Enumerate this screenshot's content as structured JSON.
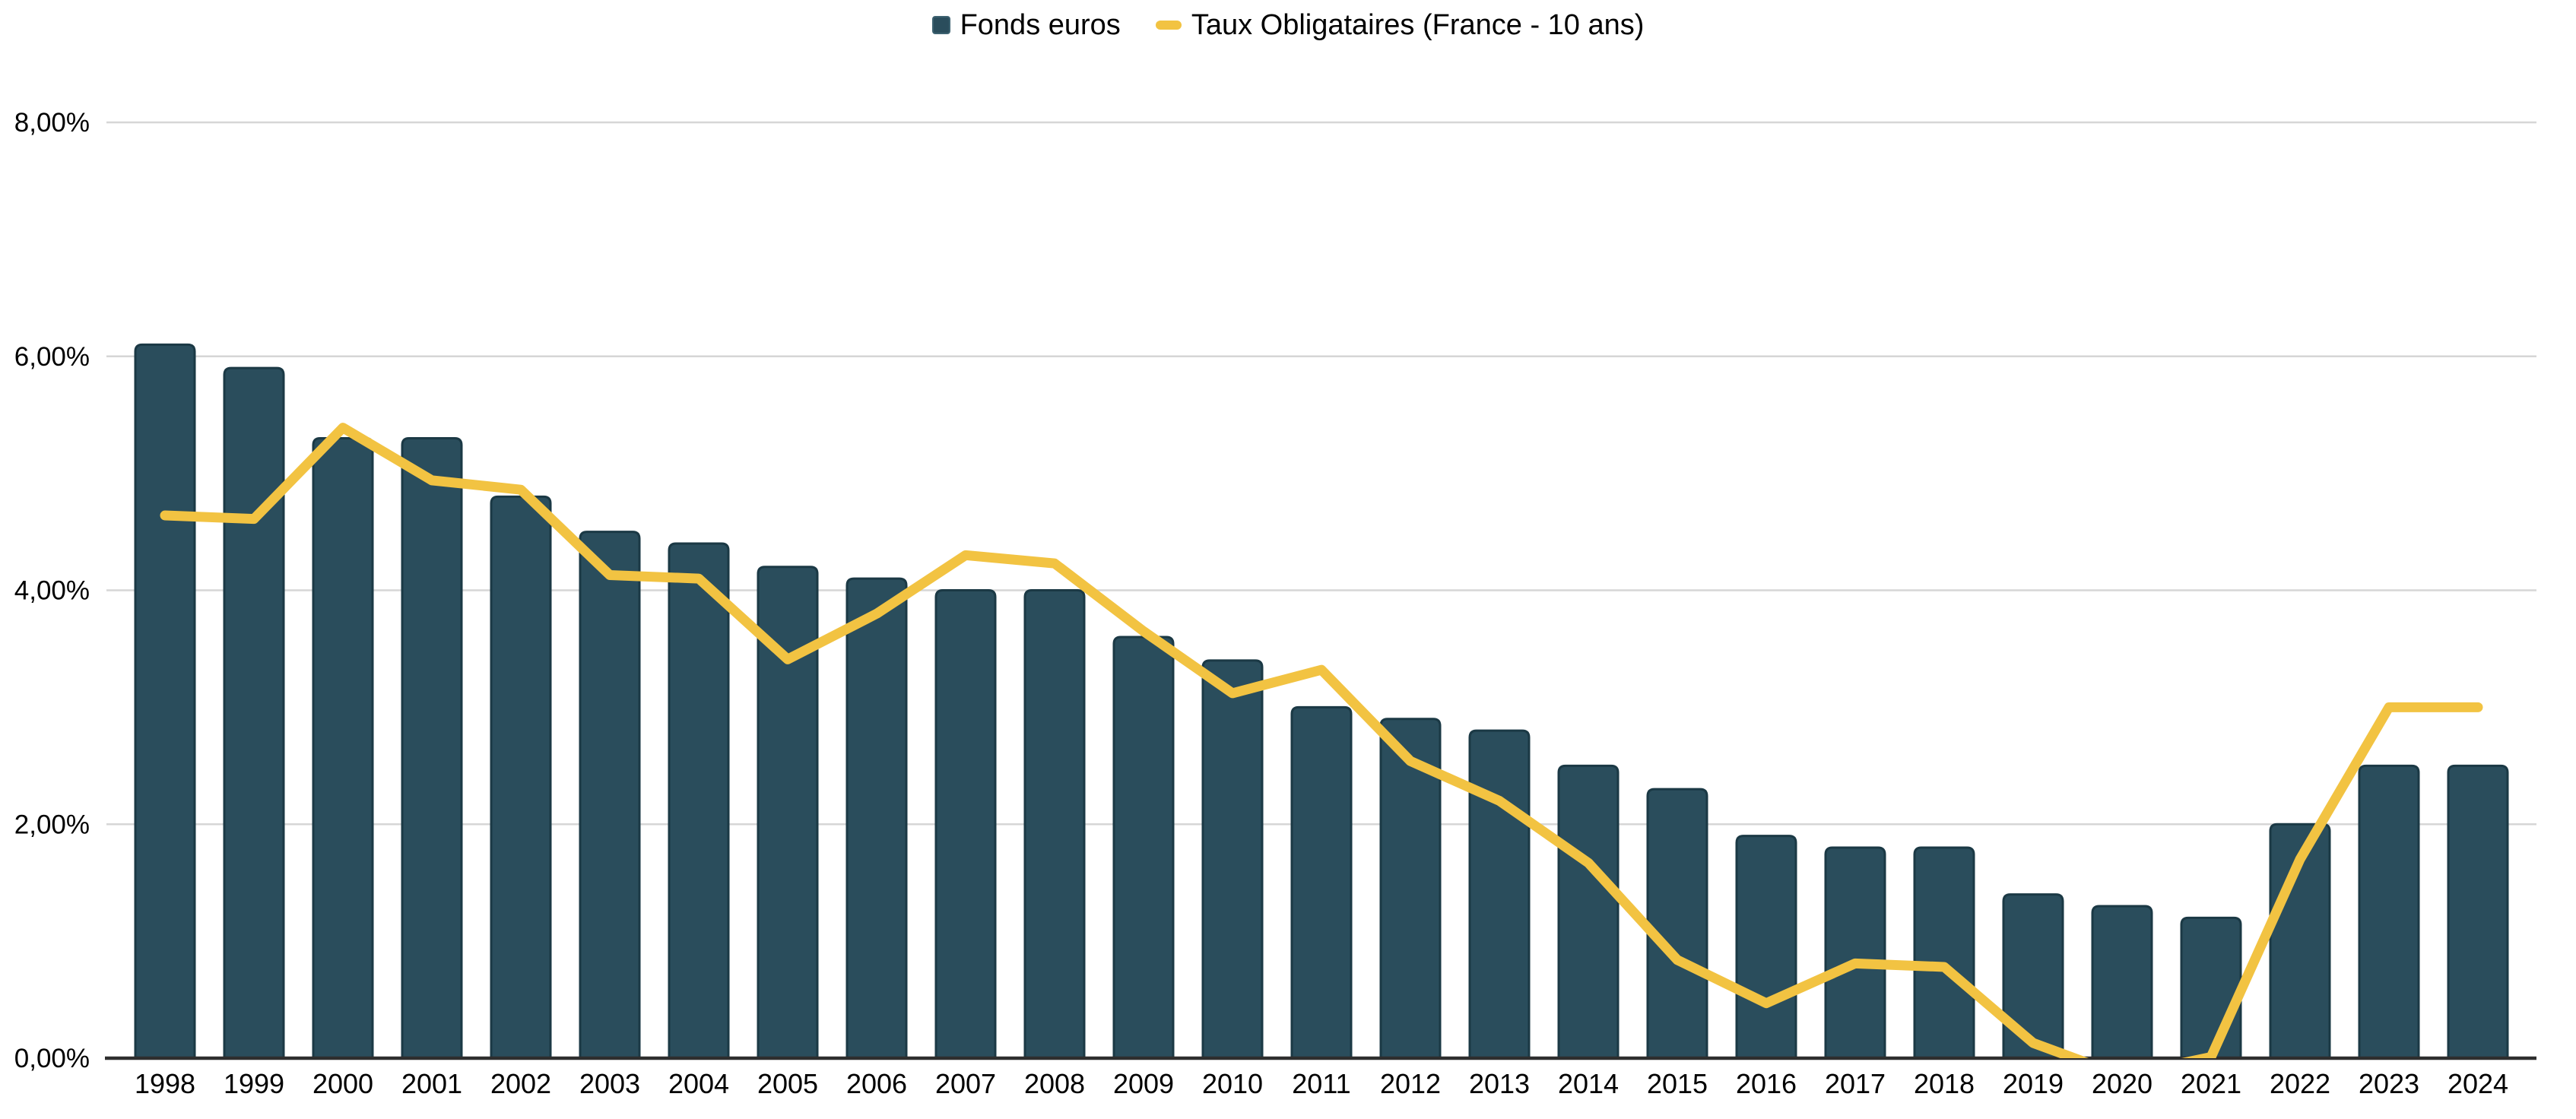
{
  "page": {
    "background_color": "#ffffff",
    "text_color": "#000000"
  },
  "legend": {
    "position": "top-center",
    "items": [
      {
        "label": "Fonds euros",
        "marker": "square",
        "color": "#2a4d5c"
      },
      {
        "label": "Taux Obligataires (France - 10 ans)",
        "marker": "dash",
        "color": "#f2c342"
      }
    ]
  },
  "chart_data": {
    "type": "combo",
    "title": "",
    "xlabel": "",
    "ylabel": "",
    "categories": [
      "1998",
      "1999",
      "2000",
      "2001",
      "2002",
      "2003",
      "2004",
      "2005",
      "2006",
      "2007",
      "2008",
      "2009",
      "2010",
      "2011",
      "2012",
      "2013",
      "2014",
      "2015",
      "2016",
      "2017",
      "2018",
      "2019",
      "2020",
      "2021",
      "2022",
      "2023",
      "2024"
    ],
    "series": [
      {
        "name": "Fonds euros",
        "type": "bar",
        "color": "#2a4d5c",
        "border_color": "#1b3945",
        "values": [
          6.1,
          5.9,
          5.3,
          5.3,
          4.8,
          4.5,
          4.4,
          4.2,
          4.1,
          4.0,
          4.0,
          3.6,
          3.4,
          3.0,
          2.9,
          2.8,
          2.5,
          2.3,
          1.9,
          1.8,
          1.8,
          1.4,
          1.3,
          1.2,
          2.0,
          2.5,
          2.5
        ]
      },
      {
        "name": "Taux Obligataires (France - 10 ans)",
        "type": "line",
        "color": "#f2c342",
        "values": [
          4.64,
          4.61,
          5.39,
          4.94,
          4.86,
          4.13,
          4.1,
          3.41,
          3.8,
          4.3,
          4.23,
          3.65,
          3.12,
          3.32,
          2.54,
          2.2,
          1.67,
          0.84,
          0.47,
          0.81,
          0.78,
          0.13,
          -0.15,
          0.01,
          1.7,
          3.0,
          3.0
        ]
      }
    ],
    "y_axis": {
      "min": 0,
      "max": 8,
      "clip_below_min": true,
      "ticks": [
        {
          "value": 8,
          "label": "8,00%"
        },
        {
          "value": 6,
          "label": "6,00%"
        },
        {
          "value": 4,
          "label": "4,00%"
        },
        {
          "value": 2,
          "label": "2,00%"
        },
        {
          "value": 0,
          "label": "0,00%"
        }
      ]
    },
    "grid": {
      "horizontal": true,
      "color": "#d6d6d6",
      "axis_color": "#2e2e2e"
    },
    "legend_position": "top"
  }
}
